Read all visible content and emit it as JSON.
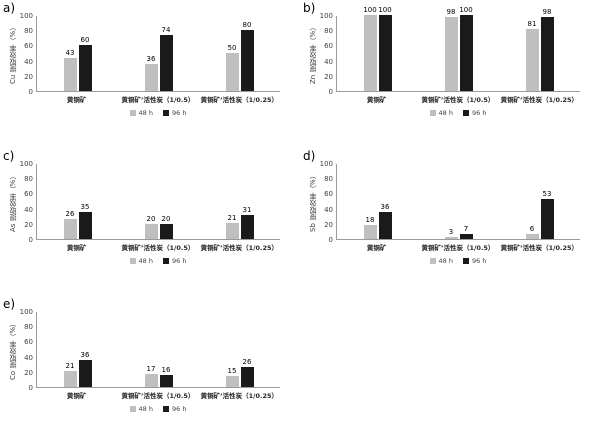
{
  "figure": {
    "legend": {
      "series1_label": "48 h",
      "series2_label": "96 h"
    },
    "colors": {
      "series1": "#bfbfbf",
      "series2": "#1a1a1a",
      "axis": "#9b9b9b"
    }
  },
  "chart_data": [
    {
      "type": "bar",
      "id": "a",
      "panel_label": "a)",
      "ylabel": "Cu 提取效率（%）",
      "categories": [
        "黄铜矿",
        "黄铜矿’活性炭（1/0.5）",
        "黄铜矿’活性炭（1/0.25）"
      ],
      "series": [
        {
          "name": "48 h",
          "values": [
            43,
            36,
            50
          ]
        },
        {
          "name": "96 h",
          "values": [
            60,
            74,
            80
          ]
        }
      ],
      "ylim": [
        0,
        100
      ],
      "yticks": [
        0,
        20,
        40,
        60,
        80,
        100
      ],
      "legend_position": "bottom",
      "grid": false
    },
    {
      "type": "bar",
      "id": "b",
      "panel_label": "b)",
      "ylabel": "Zn 提取效率（%）",
      "categories": [
        "黄铜矿",
        "黄铜矿’活性炭（1/0.5）",
        "黄铜矿’活性炭（1/0.25）"
      ],
      "series": [
        {
          "name": "48 h",
          "values": [
            100,
            98,
            81
          ]
        },
        {
          "name": "96 h",
          "values": [
            100,
            100,
            98
          ]
        }
      ],
      "ylim": [
        0,
        100
      ],
      "yticks": [
        0,
        20,
        40,
        60,
        80,
        100
      ],
      "legend_position": "bottom",
      "grid": false
    },
    {
      "type": "bar",
      "id": "c",
      "panel_label": "c)",
      "ylabel": "As 提取效率（%）",
      "categories": [
        "黄铜矿",
        "黄铜矿’活性炭（1/0.5）",
        "黄铜矿’活性炭（1/0.25）"
      ],
      "series": [
        {
          "name": "48 h",
          "values": [
            26,
            20,
            21
          ]
        },
        {
          "name": "96 h",
          "values": [
            35,
            20,
            31
          ]
        }
      ],
      "ylim": [
        0,
        100
      ],
      "yticks": [
        0,
        20,
        40,
        60,
        80,
        100
      ],
      "legend_position": "bottom",
      "grid": false
    },
    {
      "type": "bar",
      "id": "d",
      "panel_label": "d)",
      "ylabel": "Sb 提取效率（%）",
      "categories": [
        "黄铜矿",
        "黄铜矿’活性炭（1/0.5）",
        "黄铜矿’活性炭（1/0.25）"
      ],
      "series": [
        {
          "name": "48 h",
          "values": [
            18,
            3,
            6
          ]
        },
        {
          "name": "96 h",
          "values": [
            36,
            7,
            53
          ]
        }
      ],
      "ylim": [
        0,
        100
      ],
      "yticks": [
        0,
        20,
        40,
        60,
        80,
        100
      ],
      "legend_position": "bottom",
      "grid": false
    },
    {
      "type": "bar",
      "id": "e",
      "panel_label": "e)",
      "ylabel": "Co 提取效率（%）",
      "categories": [
        "黄铜矿",
        "黄铜矿’活性炭（1/0.5）",
        "黄铜矿’活性炭（1/0.25）"
      ],
      "series": [
        {
          "name": "48 h",
          "values": [
            21,
            17,
            15
          ]
        },
        {
          "name": "96 h",
          "values": [
            36,
            16,
            26
          ]
        }
      ],
      "ylim": [
        0,
        100
      ],
      "yticks": [
        0,
        20,
        40,
        60,
        80,
        100
      ],
      "legend_position": "bottom",
      "grid": false
    }
  ]
}
